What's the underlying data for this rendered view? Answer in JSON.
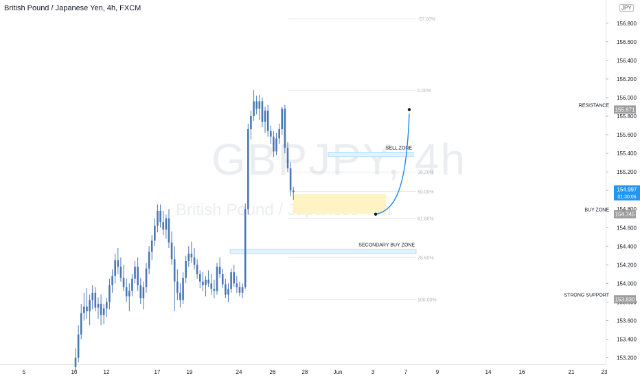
{
  "header": {
    "title": "British Pound / Japanese Yen, 4h, FXCM",
    "currency": "JPY"
  },
  "watermark": {
    "symbol": "GBPJPY, 4h",
    "name": "British Pound / Japanese Yen"
  },
  "price_scale": {
    "ticks": [
      "156.800",
      "156.600",
      "156.400",
      "156.200",
      "156.000",
      "155.800",
      "155.600",
      "155.400",
      "155.200",
      "155.000",
      "154.800",
      "154.600",
      "154.400",
      "154.200",
      "154.000",
      "153.800",
      "153.600",
      "153.400",
      "153.200"
    ]
  },
  "time_axis": {
    "labels": [
      "5",
      "10",
      "12",
      "17",
      "19",
      "24",
      "26",
      "28",
      "Jun",
      "3",
      "7",
      "9",
      "14",
      "16",
      "21",
      "23"
    ]
  },
  "current_price": {
    "value": "154.997",
    "countdown": "01:30:06",
    "color": "#2196f3"
  },
  "levels": [
    {
      "label": "RESISTANCE",
      "value": "155.871"
    },
    {
      "label": "BUY ZONE",
      "value": "154.745"
    },
    {
      "label": "STRONG SUPPORT",
      "value": "153.830"
    }
  ],
  "zones": [
    {
      "label": "SELL ZONE",
      "y_top": 155.412,
      "y_bottom": 155.365
    },
    {
      "label": "SECONDARY BUY ZONE",
      "y_top": 154.37,
      "y_bottom": 154.32
    },
    {
      "label": "",
      "y_top": 154.96,
      "y_bottom": 154.75
    }
  ],
  "fibonacci": [
    {
      "label": "-27.00%",
      "price": 156.85
    },
    {
      "label": "0.00%",
      "price": 156.08
    },
    {
      "label": "38.20%",
      "price": 155.2
    },
    {
      "label": "50.00%",
      "price": 154.99
    },
    {
      "label": "61.80%",
      "price": 154.7
    },
    {
      "label": "78.60%",
      "price": 154.28
    },
    {
      "label": "100.00%",
      "price": 153.83
    }
  ],
  "chart_data": {
    "type": "candlestick",
    "title": "British Pound / Japanese Yen, 4h, FXCM",
    "ylim": [
      153.13,
      157.05
    ],
    "colors": {
      "up": "#2962ff",
      "candle": "#4a77b4",
      "zone": "#fff3c4",
      "fib": "#b2b5be",
      "projection": "#1e88e5"
    },
    "candles": [
      [
        153.1,
        153.3,
        153.05,
        153.2
      ],
      [
        153.2,
        153.55,
        153.15,
        153.45
      ],
      [
        153.45,
        153.78,
        153.4,
        153.68
      ],
      [
        153.68,
        153.9,
        153.6,
        153.75
      ],
      [
        153.75,
        153.95,
        153.62,
        153.7
      ],
      [
        153.7,
        153.88,
        153.55,
        153.82
      ],
      [
        153.82,
        153.98,
        153.72,
        153.9
      ],
      [
        153.9,
        153.96,
        153.7,
        153.74
      ],
      [
        153.74,
        153.85,
        153.62,
        153.78
      ],
      [
        153.78,
        153.88,
        153.55,
        153.66
      ],
      [
        153.66,
        153.78,
        153.56,
        153.73
      ],
      [
        153.73,
        153.84,
        153.64,
        153.8
      ],
      [
        153.8,
        154.05,
        153.72,
        153.98
      ],
      [
        153.98,
        154.15,
        153.9,
        154.08
      ],
      [
        154.08,
        154.32,
        154.0,
        154.25
      ],
      [
        154.25,
        154.38,
        154.1,
        154.18
      ],
      [
        154.18,
        154.28,
        154.02,
        154.06
      ],
      [
        154.06,
        154.2,
        153.92,
        153.96
      ],
      [
        153.96,
        154.05,
        153.8,
        153.86
      ],
      [
        153.86,
        154.0,
        153.7,
        153.92
      ],
      [
        153.92,
        154.1,
        153.86,
        154.05
      ],
      [
        154.05,
        154.24,
        154.0,
        154.18
      ],
      [
        154.18,
        154.28,
        153.92,
        153.98
      ],
      [
        153.98,
        154.06,
        153.78,
        153.84
      ],
      [
        153.84,
        154.02,
        153.72,
        153.96
      ],
      [
        153.96,
        154.22,
        153.9,
        154.16
      ],
      [
        154.16,
        154.4,
        154.1,
        154.34
      ],
      [
        154.34,
        154.52,
        154.25,
        154.46
      ],
      [
        154.46,
        154.7,
        154.4,
        154.62
      ],
      [
        154.62,
        154.85,
        154.55,
        154.78
      ],
      [
        154.78,
        154.85,
        154.6,
        154.66
      ],
      [
        154.66,
        154.78,
        154.52,
        154.58
      ],
      [
        154.58,
        154.74,
        154.48,
        154.7
      ],
      [
        154.7,
        154.8,
        154.38,
        154.44
      ],
      [
        154.44,
        154.56,
        154.2,
        154.26
      ],
      [
        154.26,
        154.4,
        153.7,
        154.02
      ],
      [
        154.02,
        154.15,
        153.82,
        153.9
      ],
      [
        153.9,
        154.0,
        153.74,
        153.82
      ],
      [
        153.82,
        154.12,
        153.78,
        154.06
      ],
      [
        154.06,
        154.3,
        154.0,
        154.24
      ],
      [
        154.24,
        154.4,
        154.18,
        154.32
      ],
      [
        154.32,
        154.45,
        154.22,
        154.28
      ],
      [
        154.28,
        154.38,
        154.15,
        154.2
      ],
      [
        154.2,
        154.26,
        154.05,
        154.1
      ],
      [
        154.1,
        154.14,
        153.95,
        154.02
      ],
      [
        154.02,
        154.12,
        153.92,
        153.98
      ],
      [
        153.98,
        154.08,
        153.86,
        154.04
      ],
      [
        154.04,
        154.14,
        153.96,
        154.0
      ],
      [
        154.0,
        154.1,
        153.88,
        153.94
      ],
      [
        153.94,
        154.04,
        153.84,
        153.92
      ],
      [
        153.92,
        154.22,
        153.88,
        154.18
      ],
      [
        154.18,
        154.28,
        154.06,
        154.1
      ],
      [
        154.1,
        154.16,
        153.95,
        153.99
      ],
      [
        153.99,
        154.05,
        153.84,
        153.88
      ],
      [
        153.88,
        154.0,
        153.8,
        153.94
      ],
      [
        153.94,
        154.16,
        153.9,
        154.12
      ],
      [
        154.12,
        154.2,
        153.96,
        154.0
      ],
      [
        154.0,
        154.08,
        153.9,
        153.96
      ],
      [
        153.96,
        154.02,
        153.86,
        153.9
      ],
      [
        153.9,
        154.0,
        153.84,
        153.96
      ],
      [
        153.96,
        154.86,
        153.94,
        154.8
      ],
      [
        154.8,
        155.72,
        154.74,
        155.66
      ],
      [
        155.66,
        155.86,
        155.55,
        155.8
      ],
      [
        155.8,
        156.08,
        155.75,
        155.96
      ],
      [
        155.96,
        156.02,
        155.82,
        155.88
      ],
      [
        155.88,
        156.03,
        155.76,
        155.96
      ],
      [
        155.96,
        156.0,
        155.68,
        155.74
      ],
      [
        155.74,
        155.9,
        155.62,
        155.86
      ],
      [
        155.86,
        155.92,
        155.58,
        155.64
      ],
      [
        155.64,
        155.7,
        155.5,
        155.58
      ],
      [
        155.58,
        155.64,
        155.36,
        155.42
      ],
      [
        155.42,
        155.62,
        155.38,
        155.56
      ],
      [
        155.56,
        155.72,
        155.5,
        155.66
      ],
      [
        155.66,
        155.9,
        155.6,
        155.88
      ],
      [
        155.88,
        155.92,
        155.4,
        155.46
      ],
      [
        155.46,
        155.52,
        155.2,
        155.24
      ],
      [
        155.24,
        155.3,
        154.94,
        155.0
      ],
      [
        155.0,
        155.04,
        154.9,
        154.98
      ]
    ]
  }
}
